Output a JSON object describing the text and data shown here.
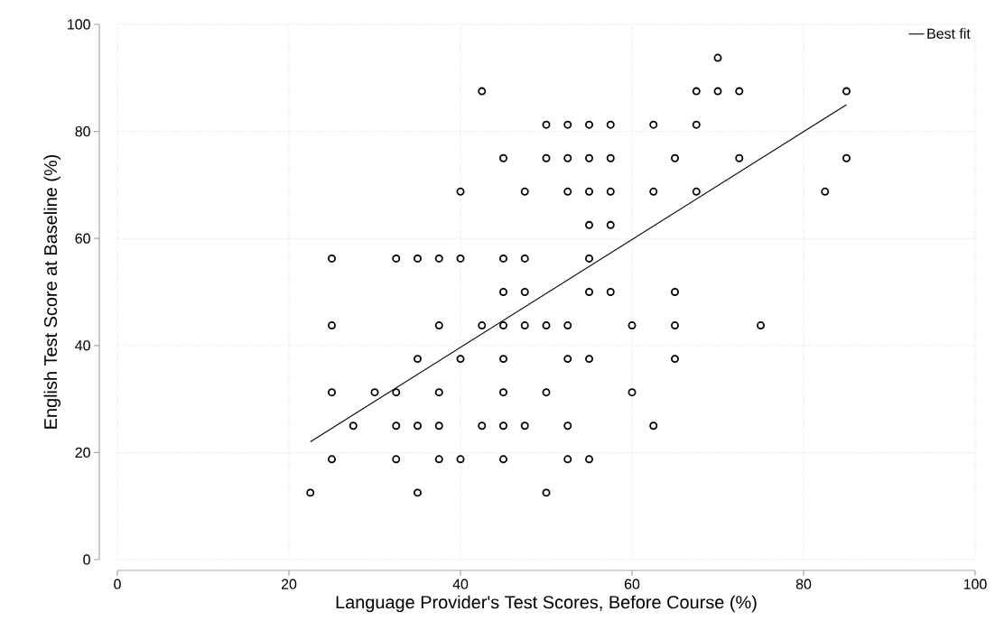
{
  "chart_data": {
    "type": "scatter",
    "xlabel": "Language Provider's Test Scores, Before Course (%)",
    "ylabel": "English Test Score at Baseline (%)",
    "xlim": [
      0,
      100
    ],
    "xticks": [
      0,
      20,
      40,
      60,
      80,
      100
    ],
    "ylim": [
      0,
      100
    ],
    "yticks": [
      0,
      20,
      40,
      60,
      80,
      100
    ],
    "grid": true,
    "legend": "top right",
    "marker": "circle",
    "series": [
      {
        "color": "#000000",
        "x": [
          22.5,
          25,
          25,
          25,
          25,
          27.5,
          30,
          32.5,
          32.5,
          32.5,
          32.5,
          35,
          35,
          35,
          35,
          37.5,
          37.5,
          37.5,
          37.5,
          37.5,
          40,
          40,
          40,
          40,
          42.5,
          42.5,
          42.5,
          45,
          45,
          45,
          45,
          45,
          45,
          45,
          45,
          47.5,
          47.5,
          47.5,
          47.5,
          47.5,
          50,
          50,
          50,
          50,
          50,
          52.5,
          52.5,
          52.5,
          52.5,
          52.5,
          52.5,
          52.5,
          55,
          55,
          55,
          55,
          55,
          55,
          55,
          55,
          57.5,
          57.5,
          57.5,
          57.5,
          57.5,
          60,
          60,
          62.5,
          62.5,
          62.5,
          65,
          65,
          65,
          65,
          67.5,
          67.5,
          67.5,
          70,
          70,
          72.5,
          72.5,
          75,
          82.5,
          85,
          85
        ],
        "values": [
          12.5,
          56.25,
          43.75,
          31.25,
          18.75,
          25,
          31.25,
          56.25,
          31.25,
          25,
          18.75,
          56.25,
          37.5,
          25,
          12.5,
          56.25,
          43.75,
          31.25,
          25,
          18.75,
          68.75,
          56.25,
          37.5,
          18.75,
          87.5,
          43.75,
          25,
          75,
          56.25,
          50,
          43.75,
          37.5,
          31.25,
          25,
          18.75,
          68.75,
          56.25,
          50,
          43.75,
          25,
          81.25,
          75,
          43.75,
          31.25,
          12.5,
          81.25,
          75,
          68.75,
          43.75,
          37.5,
          25,
          18.75,
          81.25,
          75,
          68.75,
          62.5,
          56.25,
          50,
          37.5,
          18.75,
          81.25,
          75,
          68.75,
          62.5,
          50,
          43.75,
          31.25,
          81.25,
          68.75,
          25,
          75,
          50,
          43.75,
          37.5,
          87.5,
          81.25,
          68.75,
          93.75,
          87.5,
          87.5,
          75,
          43.75,
          68.75,
          87.5,
          75
        ]
      },
      {
        "type": "line",
        "name": "Best fit",
        "color": "#000000",
        "marker": "none",
        "line_style": "solid",
        "x": [
          22.5,
          85
        ],
        "values": [
          22,
          85
        ]
      }
    ]
  }
}
